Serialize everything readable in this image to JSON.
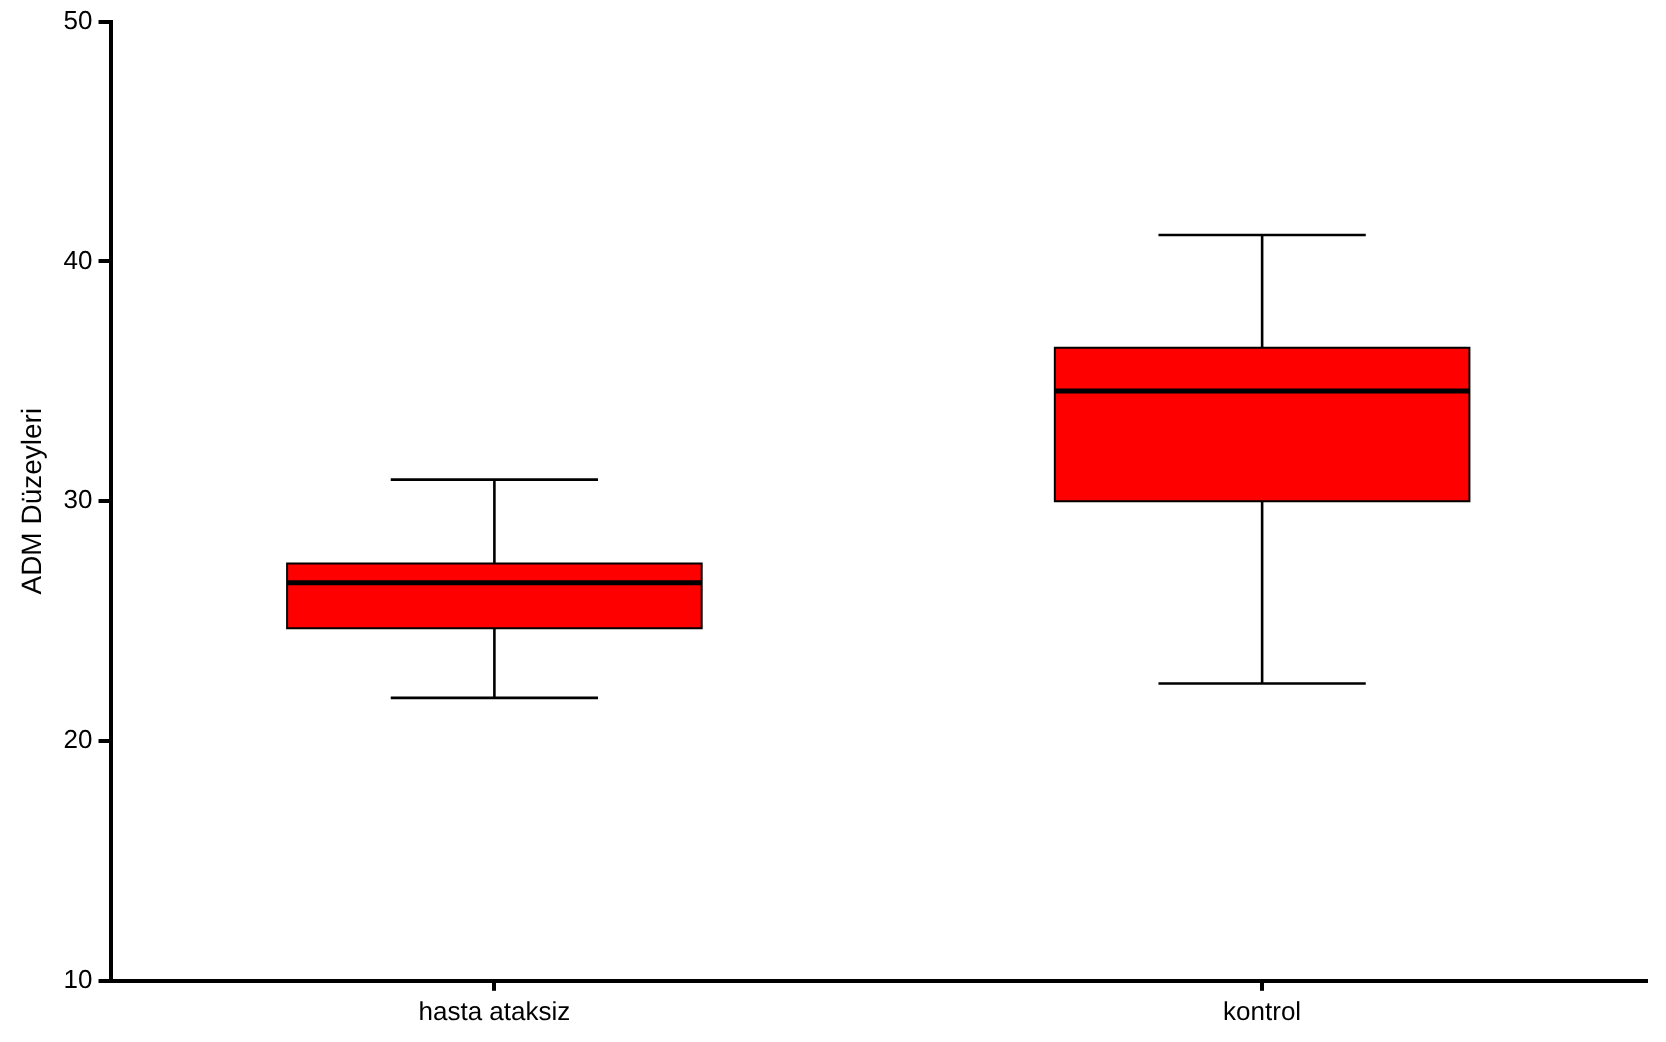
{
  "chart_data": {
    "type": "box",
    "ylabel": "ADM Düzeyleri",
    "categories": [
      "hasta ataksiz",
      "kontrol"
    ],
    "color": "#ff0000",
    "boxes": [
      {
        "low": 21.8,
        "q1": 24.7,
        "median": 26.6,
        "q3": 27.4,
        "high": 30.9
      },
      {
        "low": 22.4,
        "q1": 30.0,
        "median": 34.6,
        "q3": 36.4,
        "high": 41.1
      }
    ],
    "ylim": [
      10,
      50
    ],
    "yticks": [
      10,
      20,
      30,
      40,
      50
    ],
    "grid": false,
    "legend": false
  }
}
